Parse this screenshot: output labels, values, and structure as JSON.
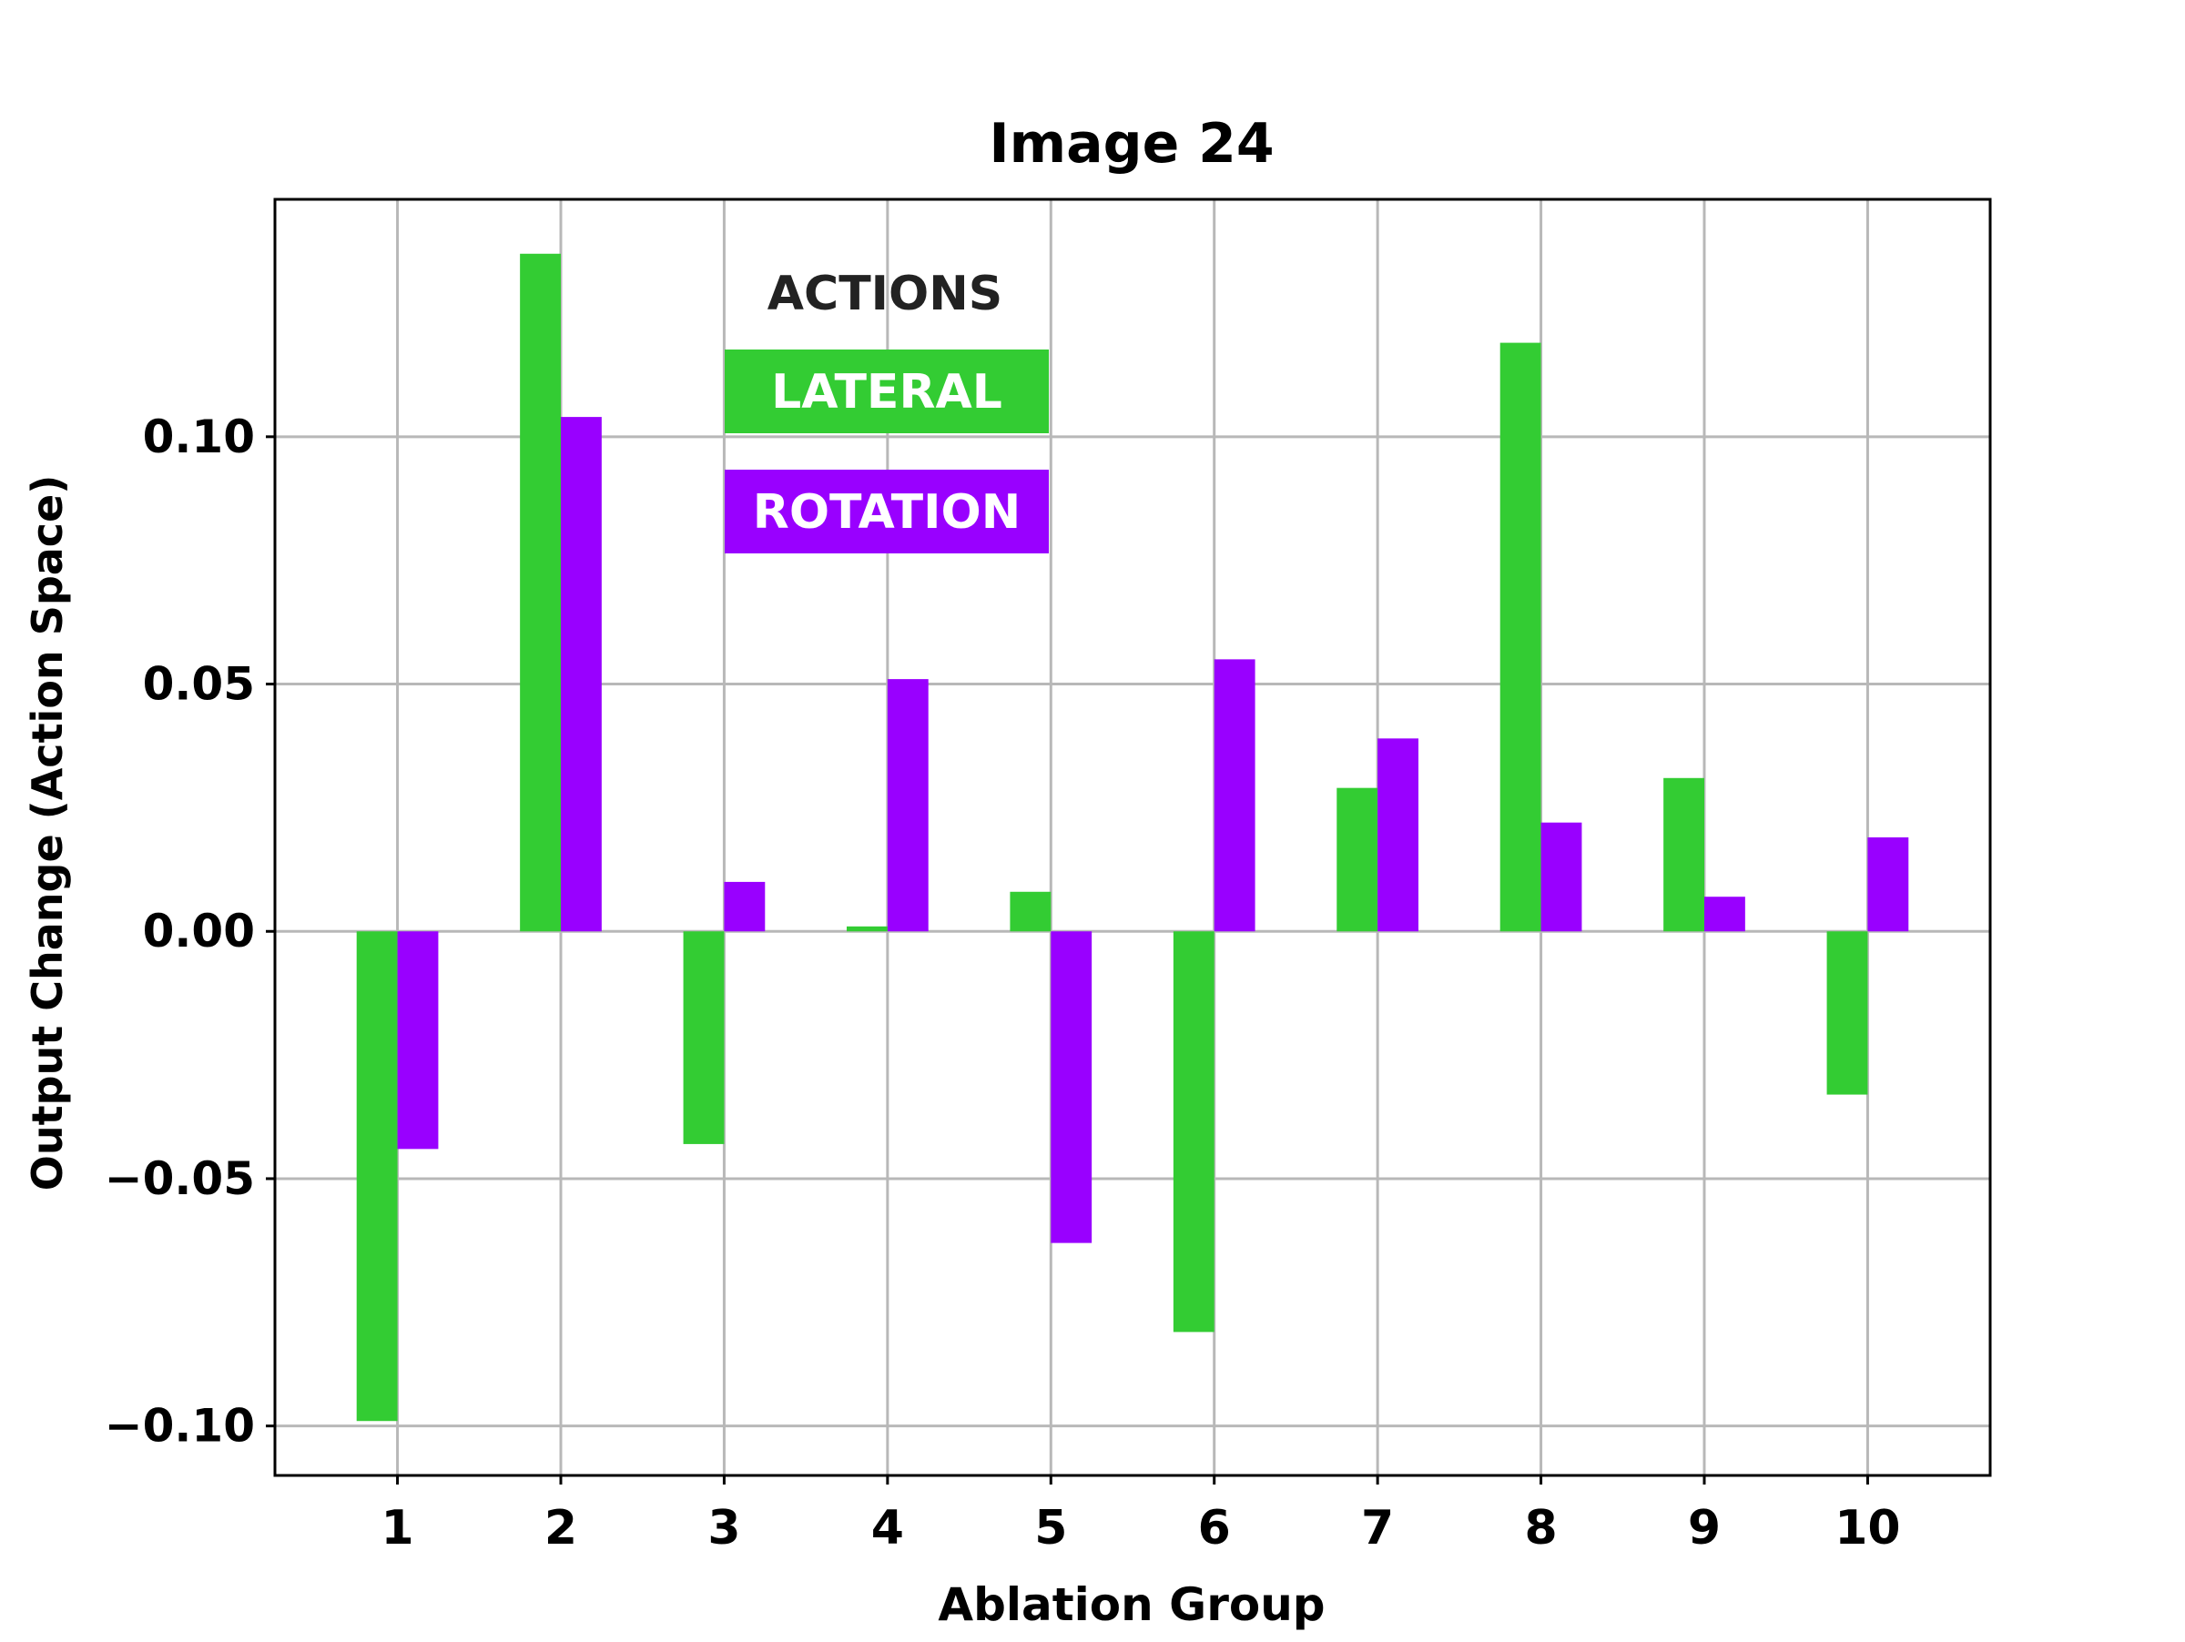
{
  "chart_data": {
    "type": "bar",
    "title": "Image 24",
    "xlabel": "Ablation Group",
    "ylabel": "Output Change (Action Space)",
    "categories": [
      "1",
      "2",
      "3",
      "4",
      "5",
      "6",
      "7",
      "8",
      "9",
      "10"
    ],
    "series": [
      {
        "name": "LATERAL",
        "color": "#33cc33",
        "values": [
          -0.099,
          0.137,
          -0.043,
          0.001,
          0.008,
          -0.081,
          0.029,
          0.119,
          0.031,
          -0.033
        ]
      },
      {
        "name": "ROTATION",
        "color": "#9900ff",
        "values": [
          -0.044,
          0.104,
          0.01,
          0.051,
          -0.063,
          0.055,
          0.039,
          0.022,
          0.007,
          0.019
        ]
      }
    ],
    "ylim": [
      -0.11,
      0.148
    ],
    "yticks": [
      "−0.10",
      "−0.05",
      "0.00",
      "0.05",
      "0.10"
    ],
    "ytick_values": [
      -0.1,
      -0.05,
      0,
      0.05,
      0.1
    ],
    "grid": true,
    "legend": {
      "title": "ACTIONS",
      "placement": "upper-center"
    }
  }
}
